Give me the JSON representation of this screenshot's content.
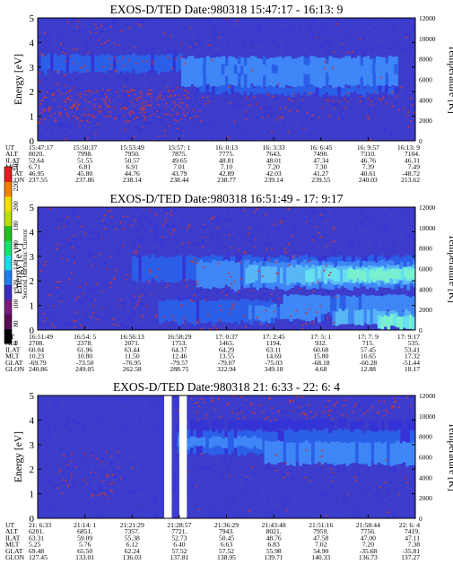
{
  "colors": {
    "background_fill": "#3d3ccb",
    "cell_palette": [
      "#3d3ccb",
      "#3434d6",
      "#2b5fe8",
      "#3f86f6",
      "#58b6f7",
      "#66e0ee",
      "#79f0d0"
    ],
    "noise_dot": "#c43a3a",
    "colorbar": [
      "#000000",
      "#5a0a55",
      "#7a1a80",
      "#3a2cc0",
      "#1f7ff0",
      "#20d8e8",
      "#18e070",
      "#20c020",
      "#b8e000",
      "#f0e000",
      "#f08000",
      "#e02020"
    ],
    "frame": "#000000"
  },
  "colorbar": {
    "label": "Second Harmonic Current",
    "ticks": [
      "0",
      "80",
      "100",
      "120",
      "140",
      "160",
      "180",
      "200",
      "220",
      "240"
    ]
  },
  "chart_data": [
    {
      "type": "heatmap",
      "title": "EXOS-D/TED  Date:980318  15:47:17 - 16:13: 9",
      "ylabel": "Energy [eV]",
      "ylabel_right": "Temperature [K]",
      "ylim": [
        0,
        5
      ],
      "ylim_right": [
        0,
        12000
      ],
      "yticks": [
        "0",
        "1",
        "2",
        "3",
        "4",
        "5"
      ],
      "yticks_right": [
        "0",
        "2000",
        "4000",
        "6000",
        "8000",
        "10000",
        "12000"
      ],
      "orbit_rows": [
        "UT",
        "ALT",
        "ILAT",
        "MLT",
        "GLAT",
        "GLON"
      ],
      "orbit_columns": [
        [
          "15:47:17",
          "8020.",
          "52.64",
          "6.71",
          "46.95",
          "237.55"
        ],
        [
          "15:50:37",
          "7998.",
          "51.55",
          "6.81",
          "45.80",
          "237.86"
        ],
        [
          "15:53:49",
          "7950.",
          "50.57",
          "6.91",
          "44.76",
          "238.14"
        ],
        [
          "15:57: 1",
          "7875.",
          "49.65",
          "7.01",
          "43.79",
          "238.44"
        ],
        [
          "16: 0:13",
          "7775.",
          "48.81",
          "7.10",
          "42.89",
          "238.77"
        ],
        [
          "16: 3:33",
          "7643.",
          "48.01",
          "7.20",
          "42.03",
          "239.14"
        ],
        [
          "16: 6:45",
          "7490.",
          "47.34",
          "7.30",
          "41.27",
          "239.55"
        ],
        [
          "16: 9:57",
          "7310.",
          "46.76",
          "7.39",
          "40.61",
          "240.03"
        ],
        [
          "16:13: 9",
          "7104.",
          "46.31",
          "7.49",
          "-48.72",
          "213.62"
        ]
      ],
      "bands": [
        {
          "from": 0.0,
          "to": 0.38,
          "e_lo": 2.8,
          "e_hi": 3.5,
          "level": 2
        },
        {
          "from": 0.38,
          "to": 0.95,
          "e_lo": 2.2,
          "e_hi": 3.4,
          "level": 3
        },
        {
          "from": 0.42,
          "to": 0.95,
          "e_lo": 2.7,
          "e_hi": 3.1,
          "level": 3
        },
        {
          "from": 0.42,
          "to": 0.95,
          "e_lo": 1.9,
          "e_hi": 2.2,
          "level": 2
        }
      ],
      "gaps": []
    },
    {
      "type": "heatmap",
      "title": "EXOS-D/TED  Date:980318  16:51:49 - 17: 9:17",
      "ylabel": "Energy [eV]",
      "ylabel_right": "Temperature [K]",
      "ylim": [
        0,
        5
      ],
      "ylim_right": [
        0,
        12000
      ],
      "yticks": [
        "0",
        "1",
        "2",
        "3",
        "4",
        "5"
      ],
      "yticks_right": [
        "0",
        "2000",
        "4000",
        "6000",
        "8000",
        "10000",
        "12000"
      ],
      "orbit_rows": [
        "UT",
        "ALT",
        "ILAT",
        "MLT",
        "GLAT",
        "GLON"
      ],
      "orbit_columns": [
        [
          "16:51:49",
          "2708.",
          "60.04",
          "10.23",
          "-69.79",
          "240.86"
        ],
        [
          "16:54: 5",
          "2378.",
          "61.96",
          "10.80",
          "-73.50",
          "249.05"
        ],
        [
          "16:56:13",
          "2071.",
          "63.44",
          "11.50",
          "-76.95",
          "262.58"
        ],
        [
          "16:58:29",
          "1753.",
          "64.37",
          "12.46",
          "-79.57",
          "288.75"
        ],
        [
          "17: 0:37",
          "1465.",
          "64.29",
          "13.55",
          "-79.07",
          "322.94"
        ],
        [
          "17: 2:45",
          "1194.",
          "63.11",
          "14.69",
          "-75.03",
          "349.18"
        ],
        [
          "17: 5: 1",
          "932.",
          "60.68",
          "15.80",
          "-68.18",
          "4.68"
        ],
        [
          "17: 7: 9",
          "715.",
          "57.45",
          "16.65",
          "-60.28",
          "12.88"
        ],
        [
          "17: 9:17",
          "535.",
          "53.41",
          "17.32",
          "-51.44",
          "18.17"
        ]
      ],
      "bands": [
        {
          "from": 0.25,
          "to": 1.0,
          "e_lo": 2.0,
          "e_hi": 3.0,
          "level": 2
        },
        {
          "from": 0.42,
          "to": 1.0,
          "e_lo": 1.7,
          "e_hi": 2.8,
          "level": 3
        },
        {
          "from": 0.55,
          "to": 1.0,
          "e_lo": 1.9,
          "e_hi": 2.6,
          "level": 4
        },
        {
          "from": 0.7,
          "to": 1.0,
          "e_lo": 2.0,
          "e_hi": 2.5,
          "level": 5
        },
        {
          "from": 0.82,
          "to": 1.0,
          "e_lo": 2.05,
          "e_hi": 2.45,
          "level": 6
        },
        {
          "from": 0.32,
          "to": 0.62,
          "e_lo": 0.3,
          "e_hi": 1.2,
          "level": 2
        },
        {
          "from": 0.55,
          "to": 0.75,
          "e_lo": 0.4,
          "e_hi": 1.0,
          "level": 3
        },
        {
          "from": 0.65,
          "to": 1.0,
          "e_lo": 0.7,
          "e_hi": 1.4,
          "level": 3
        },
        {
          "from": 0.78,
          "to": 1.0,
          "e_lo": 0.2,
          "e_hi": 0.8,
          "level": 4
        },
        {
          "from": 0.9,
          "to": 1.0,
          "e_lo": 0.1,
          "e_hi": 0.6,
          "level": 6
        }
      ],
      "gaps": []
    },
    {
      "type": "heatmap",
      "title": "EXOS-D/TED  Date:980318  21: 6:33 - 22: 6: 4",
      "ylabel": "Energy [eV]",
      "ylabel_right": "Temperature [K]",
      "ylim": [
        0,
        5
      ],
      "ylim_right": [
        0,
        12000
      ],
      "yticks": [
        "0",
        "1",
        "2",
        "3",
        "4",
        "5"
      ],
      "yticks_right": [
        "0",
        "2000",
        "4000",
        "6000",
        "8000",
        "10000",
        "12000"
      ],
      "orbit_rows": [
        "UT",
        "ALT",
        "ILAT",
        "MLT",
        "GLAT",
        "GLON"
      ],
      "orbit_columns": [
        [
          "21: 6:33",
          "6201.",
          "63.31",
          "5.25",
          "69.48",
          "127.45"
        ],
        [
          "21:14: 1",
          "6851.",
          "59.09",
          "5.76",
          "65.50",
          "133.01"
        ],
        [
          "21:21:29",
          "7357.",
          "55.38",
          "6.12",
          "62.24",
          "136.03"
        ],
        [
          "21:28:57",
          "7721.",
          "52.73",
          "6.40",
          "57.52",
          "137.81"
        ],
        [
          "21:36:29",
          "7943.",
          "50.45",
          "6.63",
          "57.52",
          "138.95"
        ],
        [
          "21:43:48",
          "8021.",
          "48.76",
          "6.83",
          "55.98",
          "139.71"
        ],
        [
          "21:51:16",
          "7959.",
          "47.58",
          "7.02",
          "54.90",
          "140.33"
        ],
        [
          "21:58:44",
          "7756.",
          "47.00",
          "7.20",
          "-35.68",
          "136.73"
        ],
        [
          "22: 6: 4",
          "7419.",
          "47.11",
          "7.38",
          "-35.81",
          "137.27"
        ]
      ],
      "bands": [
        {
          "from": 0.37,
          "to": 1.0,
          "e_lo": 2.6,
          "e_hi": 3.6,
          "level": 2
        },
        {
          "from": 0.37,
          "to": 0.6,
          "e_lo": 2.9,
          "e_hi": 3.3,
          "level": 3
        },
        {
          "from": 0.6,
          "to": 1.0,
          "e_lo": 2.2,
          "e_hi": 3.1,
          "level": 3
        },
        {
          "from": 0.37,
          "to": 1.0,
          "e_lo": 3.6,
          "e_hi": 4.0,
          "level": 1
        }
      ],
      "gaps": [
        [
          0.335,
          0.355
        ],
        [
          0.375,
          0.395
        ]
      ]
    }
  ]
}
